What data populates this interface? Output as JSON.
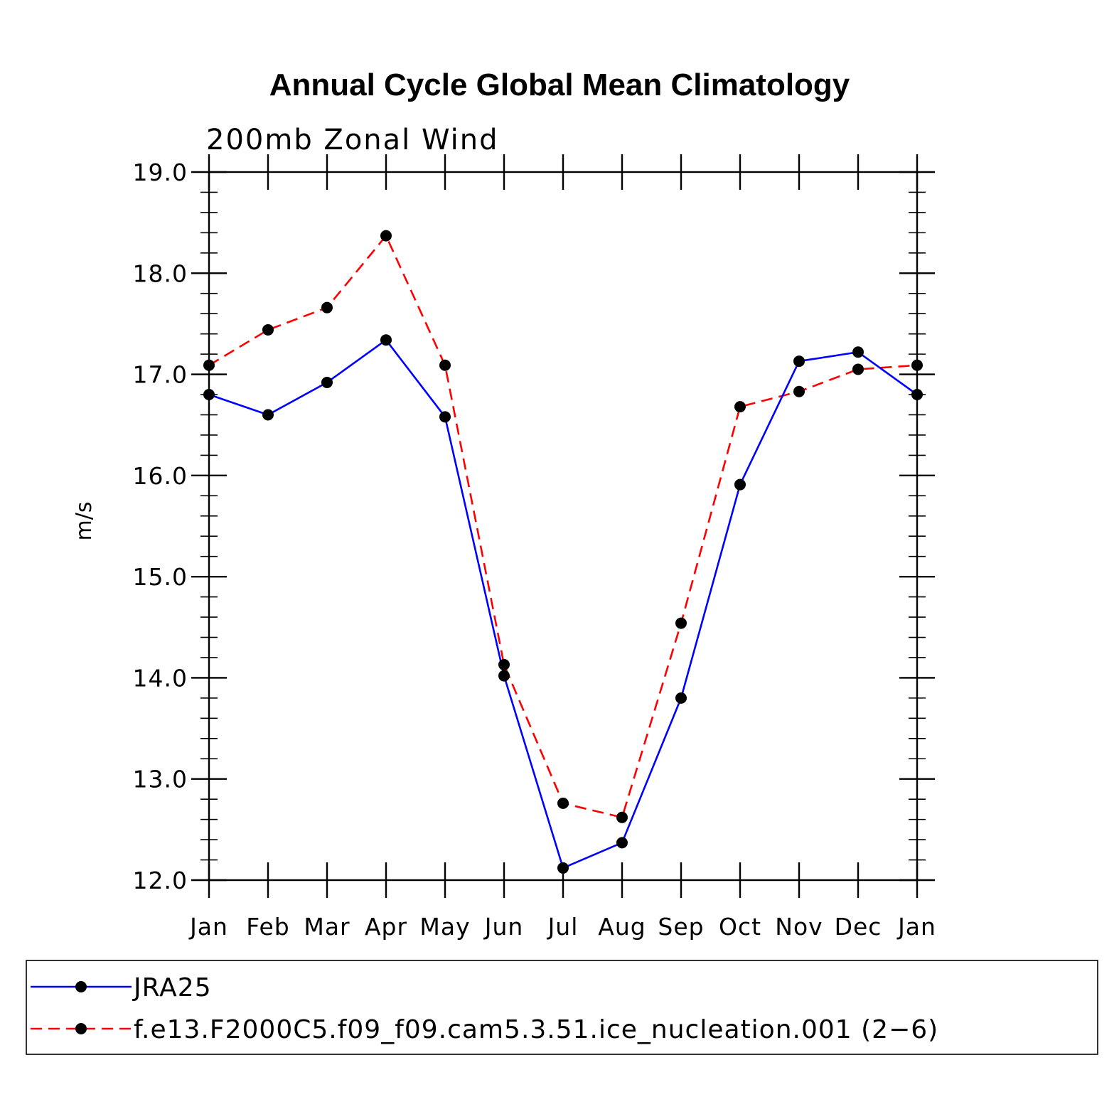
{
  "chart_data": {
    "type": "line",
    "title": "Annual Cycle Global Mean Climatology",
    "subtitle": "200mb  Zonal  Wind",
    "xlabel": "",
    "ylabel": "m/s",
    "categories": [
      "Jan",
      "Feb",
      "Mar",
      "Apr",
      "May",
      "Jun",
      "Jul",
      "Aug",
      "Sep",
      "Oct",
      "Nov",
      "Dec",
      "Jan"
    ],
    "ylim": [
      12.0,
      19.0
    ],
    "yticks": [
      "12.0",
      "13.0",
      "14.0",
      "15.0",
      "16.0",
      "17.0",
      "18.0",
      "19.0"
    ],
    "ytick_values": [
      12,
      13,
      14,
      15,
      16,
      17,
      18,
      19
    ],
    "grid": false,
    "legend_position": "bottom",
    "series": [
      {
        "name": "JRA25",
        "color": "#0000ff",
        "dash": "solid",
        "marker": "dot",
        "values": [
          16.8,
          16.6,
          16.92,
          17.34,
          16.58,
          14.02,
          12.12,
          12.37,
          13.8,
          15.91,
          17.13,
          17.22,
          16.8
        ]
      },
      {
        "name": "f.e13.F2000C5.f09_f09.cam5.3.51.ice_nucleation.001 (2−6)",
        "color": "#ff0000",
        "dash": "dashed",
        "marker": "dot",
        "values": [
          17.09,
          17.44,
          17.66,
          18.37,
          17.09,
          14.13,
          12.76,
          12.62,
          14.54,
          16.68,
          16.83,
          17.05,
          17.09
        ]
      }
    ]
  }
}
